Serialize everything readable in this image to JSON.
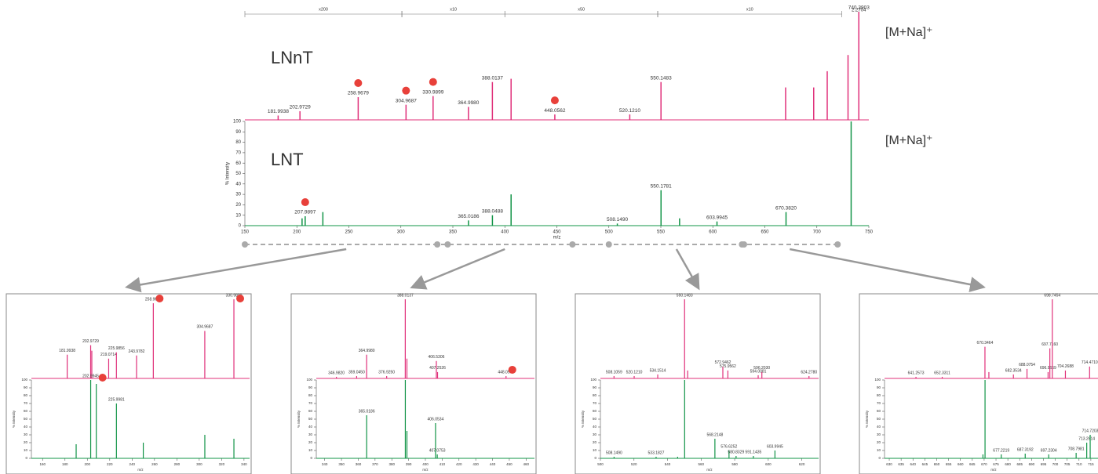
{
  "chart_data": [
    {
      "type": "spectrum",
      "x_label": "m/z",
      "y_label": "% Intensity",
      "xlim": [
        150,
        750
      ],
      "xticks": [
        150,
        200,
        250,
        300,
        350,
        400,
        450,
        500,
        550,
        600,
        650,
        700,
        750
      ],
      "ylim": [
        0,
        100
      ],
      "yticks": [
        0,
        10,
        20,
        30,
        40,
        50,
        60,
        70,
        80,
        90,
        100
      ],
      "magnification": [
        {
          "from": 150,
          "to": 301,
          "label": "x200"
        },
        {
          "from": 301,
          "to": 400,
          "label": "x10"
        },
        {
          "from": 400,
          "to": 547,
          "label": "x50"
        },
        {
          "from": 547,
          "to": 724,
          "label": "x10"
        }
      ],
      "top_label": "2.2704",
      "series": [
        {
          "name": "LNnT",
          "annotation": "[M+Na]⁺",
          "color": "#e0307a",
          "x": [
            181.9938,
            202.9729,
            258.9679,
            304.9687,
            330.9899,
            364.998,
            388.0137,
            406,
            448.0562,
            520.121,
            550.1483,
            670,
            697,
            710,
            730,
            740.3903
          ],
          "values": [
            4,
            8,
            21,
            14,
            22,
            12,
            35,
            38,
            5,
            5,
            35,
            30,
            30,
            45,
            60,
            100
          ],
          "peak_labels": [
            "181.9938",
            "202.9729",
            "258.9679",
            "304.9687",
            "330.9899",
            "364.9980",
            "388.0137",
            null,
            "448.0562",
            "520.1210",
            "550.1483",
            null,
            null,
            null,
            null,
            "740.3903"
          ],
          "dots": [
            258.9679,
            304.9687,
            330.9899,
            448.0562
          ]
        },
        {
          "name": "LNT",
          "annotation": "[M+Na]⁺",
          "color": "#129447",
          "x": [
            205,
            207.9897,
            225,
            365.0186,
            388.0488,
            406,
            508.149,
            550.1781,
            568,
            603.9945,
            670.382,
            733
          ],
          "values": [
            7,
            9,
            13,
            5,
            10,
            30,
            2,
            34,
            7,
            4,
            13,
            100
          ],
          "peak_labels": [
            null,
            "207.9897",
            null,
            "365.0186",
            "388.0488",
            null,
            "508.1490",
            "550.1781",
            null,
            "603.9945",
            "670.3820",
            null
          ],
          "dots": [
            207.9897
          ]
        }
      ]
    },
    {
      "type": "spectrum",
      "x_label": "m/z",
      "y_label": "% Intensity",
      "xlim": [
        150,
        345
      ],
      "xticks": [
        160,
        180,
        200,
        220,
        240,
        260,
        280,
        300,
        320,
        340
      ],
      "ylim": [
        0,
        100
      ],
      "yticks": [
        0,
        10,
        20,
        30,
        40,
        50,
        60,
        70,
        80,
        90,
        100
      ],
      "series": [
        {
          "color": "#e0307a",
          "x": [
            181.9938,
            202.9729,
            204,
            219.0714,
            225.9856,
            243.9782,
            258.9679,
            304.9687,
            330.9899
          ],
          "values": [
            30,
            42,
            35,
            25,
            33,
            29,
            95,
            60,
            100
          ],
          "peak_labels": [
            "181.9938",
            "202.9729",
            null,
            "219.0714",
            "225.9856",
            "243.9782",
            "258.9679",
            "304.9687",
            "330.9899"
          ],
          "dots": [
            258.9679,
            330.9899
          ]
        },
        {
          "color": "#129447",
          "x": [
            190,
            202.9945,
            207.9897,
            225.9981,
            250,
            305,
            331
          ],
          "values": [
            18,
            100,
            95,
            70,
            20,
            30,
            25
          ],
          "peak_labels": [
            null,
            "202.9945",
            null,
            "225.9981",
            null,
            null,
            null
          ],
          "dots": [
            207.9897
          ]
        }
      ]
    },
    {
      "type": "spectrum",
      "x_label": "m/z",
      "y_label": "% Intensity",
      "xlim": [
        335,
        465
      ],
      "xticks": [
        340,
        350,
        360,
        370,
        380,
        390,
        400,
        410,
        420,
        430,
        440,
        450,
        460
      ],
      "ylim": [
        0,
        100
      ],
      "yticks": [
        0,
        10,
        20,
        30,
        40,
        50,
        60,
        70,
        80,
        90,
        100
      ],
      "series": [
        {
          "color": "#e0307a",
          "x": [
            346.982,
            359.045,
            364.998,
            376.925,
            388.0137,
            389,
            406.5306,
            407.2526,
            448.0562
          ],
          "values": [
            2,
            3,
            30,
            3,
            100,
            25,
            22,
            8,
            3
          ],
          "peak_labels": [
            "346.9820",
            "359.0450",
            "364.9980",
            "376.9250",
            "388.0137",
            null,
            "406.5306",
            "407.2526",
            "448.0562"
          ],
          "dots": [
            448.0562
          ]
        },
        {
          "color": "#129447",
          "x": [
            365.0186,
            388.0488,
            389,
            406.0534,
            407.0753
          ],
          "values": [
            55,
            100,
            35,
            45,
            5
          ],
          "peak_labels": [
            "365.0186",
            null,
            null,
            "406.0534",
            "407.0753"
          ],
          "dots": []
        }
      ]
    },
    {
      "type": "spectrum",
      "x_label": "m/z",
      "y_label": "% Intensity",
      "xlim": [
        500,
        630
      ],
      "xticks": [
        500,
        520,
        540,
        560,
        580,
        600,
        620
      ],
      "ylim": [
        0,
        100
      ],
      "yticks": [
        0,
        10,
        20,
        30,
        40,
        50,
        60,
        70,
        80,
        90,
        100
      ],
      "series": [
        {
          "color": "#e0307a",
          "x": [
            508.1059,
            520.121,
            534.1514,
            550.1483,
            552,
            572.9462,
            575.9562,
            594.0081,
            596.203,
            624.278
          ],
          "values": [
            3,
            3,
            5,
            100,
            10,
            15,
            10,
            4,
            8,
            3
          ],
          "peak_labels": [
            "508.1059",
            "520.1210",
            "534.1514",
            "550.1483",
            null,
            "572.9462",
            "575.9562",
            "594.0081",
            "596.2030",
            "624.2780"
          ],
          "dots": []
        },
        {
          "color": "#129447",
          "x": [
            508.149,
            533.1827,
            546,
            550.1781,
            568.2148,
            576.6252,
            580.8329,
            591.1435,
            603.9945
          ],
          "values": [
            2,
            2,
            2,
            100,
            25,
            10,
            3,
            3,
            10
          ],
          "peak_labels": [
            "508.1490",
            "533.1827",
            null,
            null,
            "568.2148",
            "576.6252",
            "580.8329",
            "591.1435",
            "603.9945"
          ],
          "dots": []
        }
      ]
    },
    {
      "type": "spectrum",
      "x_label": "m/z",
      "y_label": "% Intensity",
      "xlim": [
        628,
        720
      ],
      "xticks": [
        630,
        635,
        640,
        645,
        650,
        655,
        660,
        665,
        670,
        675,
        680,
        685,
        690,
        695,
        700,
        705,
        710,
        715
      ],
      "ylim": [
        0,
        100
      ],
      "yticks": [
        0,
        10,
        20,
        30,
        40,
        50,
        60,
        70,
        80,
        90,
        100
      ],
      "series": [
        {
          "color": "#e0307a",
          "x": [
            641.2573,
            652.3311,
            670.3464,
            672,
            682.3534,
            688.0754,
            696.9669,
            697.716,
            698.7454,
            704.2688,
            714.471
          ],
          "values": [
            2,
            2,
            40,
            8,
            5,
            12,
            8,
            38,
            100,
            10,
            15
          ],
          "peak_labels": [
            "641.2573",
            "652.3311",
            "670.3464",
            null,
            "682.3534",
            "688.0754",
            "696.9669",
            "697.7160",
            "698.7454",
            "704.2688",
            "714.4710"
          ],
          "dots": []
        },
        {
          "color": "#129447",
          "x": [
            669.5,
            670.382,
            677.2219,
            687.3192,
            697.2304,
            708.7981,
            713.2614,
            714.7203
          ],
          "values": [
            5,
            100,
            5,
            6,
            5,
            7,
            20,
            30
          ],
          "peak_labels": [
            null,
            null,
            "677.2219",
            "687.3192",
            "697.2304",
            "708.7981",
            "713.2614",
            "714.7203"
          ],
          "dots": []
        }
      ]
    }
  ]
}
